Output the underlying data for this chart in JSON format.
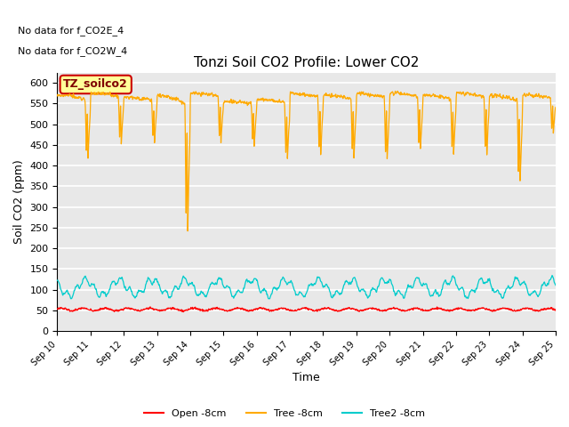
{
  "title": "Tonzi Soil CO2 Profile: Lower CO2",
  "xlabel": "Time",
  "ylabel": "Soil CO2 (ppm)",
  "text_no_data": [
    "No data for f_CO2E_4",
    "No data for f_CO2W_4"
  ],
  "legend_label_box": "TZ_soilco2",
  "x_tick_labels": [
    "Sep 10",
    "Sep 11",
    "Sep 12",
    "Sep 13",
    "Sep 14",
    "Sep 15",
    "Sep 16",
    "Sep 17",
    "Sep 18",
    "Sep 19",
    "Sep 20",
    "Sep 21",
    "Sep 22",
    "Sep 23",
    "Sep 24",
    "Sep 25"
  ],
  "ylim": [
    0,
    625
  ],
  "yticks": [
    0,
    50,
    100,
    150,
    200,
    250,
    300,
    350,
    400,
    450,
    500,
    550,
    600
  ],
  "bg_color": "#e8e8e8",
  "grid_color": "#ffffff",
  "line_colors": {
    "open": "#ff0000",
    "tree": "#ffaa00",
    "tree2": "#00cccc"
  },
  "legend_labels": [
    "Open -8cm",
    "Tree -8cm",
    "Tree2 -8cm"
  ],
  "n_points": 3600,
  "figsize": [
    6.4,
    4.8
  ],
  "dpi": 100
}
